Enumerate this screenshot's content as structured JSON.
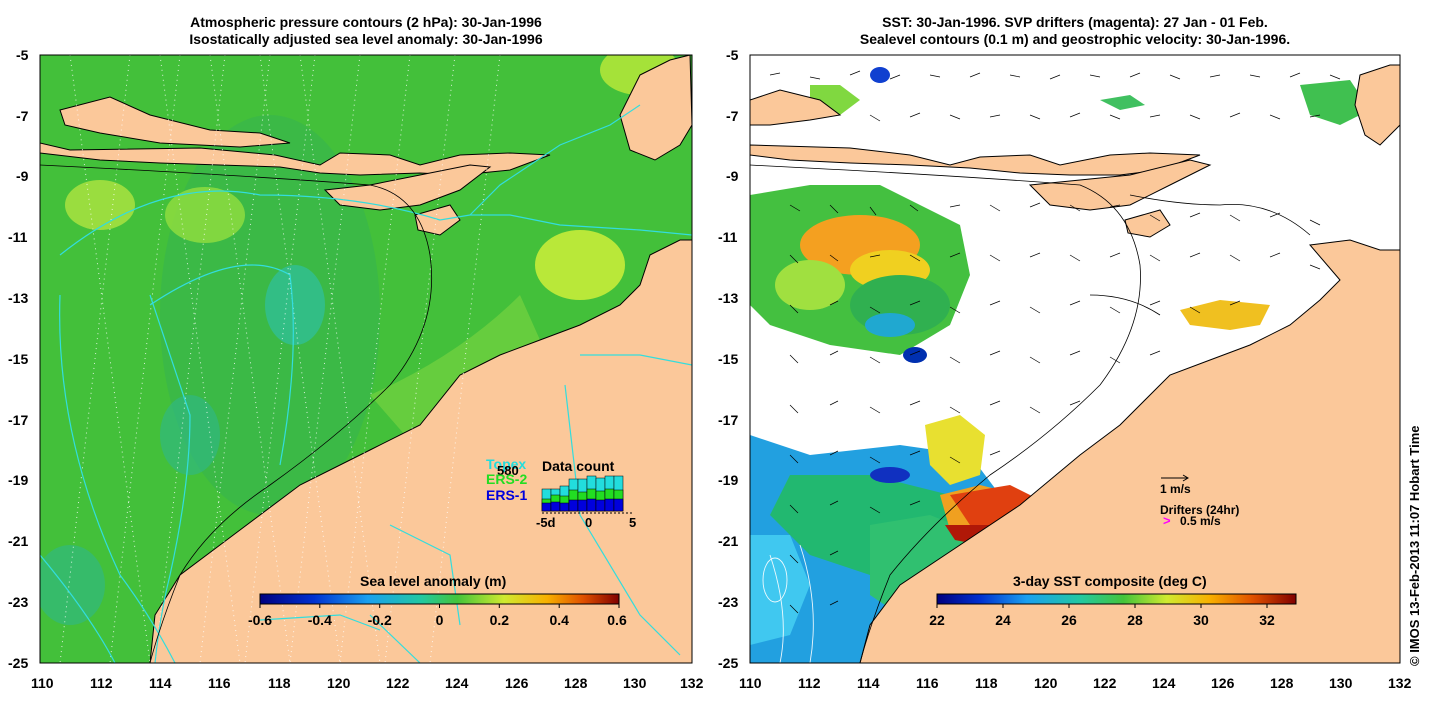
{
  "left_panel": {
    "title_line1": "Atmospheric pressure contours (2 hPa): 30-Jan-1996",
    "title_line2": "Isostatically adjusted sea level anomaly: 30-Jan-1996",
    "colorbar": {
      "title": "Sea level anomaly (m)",
      "ticks": [
        "-0.6",
        "-0.4",
        "-0.2",
        "0",
        "0.2",
        "0.4",
        "0.6"
      ]
    },
    "legend": {
      "topex_label": "Topex",
      "topex_count": "580",
      "ers2_label": "ERS-2",
      "ers1_label": "ERS-1",
      "topex_color": "#22dddd",
      "ers2_color": "#22dd22",
      "ers1_color": "#0000dd"
    },
    "data_count": {
      "title": "Data count",
      "axis_labels": [
        "-5d",
        "0",
        "5"
      ]
    }
  },
  "right_panel": {
    "title_line1": "SST: 30-Jan-1996. SVP drifters (magenta): 27 Jan - 01 Feb.",
    "title_line2": "Sealevel contours (0.1 m) and geostrophic velocity: 30-Jan-1996.",
    "colorbar": {
      "title": "3-day SST composite (deg C)",
      "ticks": [
        "22",
        "24",
        "26",
        "28",
        "30",
        "32"
      ]
    },
    "velocity_scale_label": "1 m/s",
    "drifters_label": "Drifters (24hr)",
    "drifters_symbol": ">",
    "drifters_speed": "0.5 m/s"
  },
  "axes": {
    "lat_labels": [
      "-5",
      "-7",
      "-9",
      "-11",
      "-13",
      "-15",
      "-17",
      "-19",
      "-21",
      "-23",
      "-25"
    ],
    "lon_labels": [
      "110",
      "112",
      "114",
      "116",
      "118",
      "120",
      "122",
      "124",
      "126",
      "128",
      "130",
      "132"
    ]
  },
  "credit": "© IMOS 13-Feb-2013 11:07 Hobart Time",
  "colors": {
    "land": "#fbc89a",
    "ocean_green": "#44c43a",
    "coast": "#000000",
    "drifter_magenta": "#ff00ff"
  }
}
